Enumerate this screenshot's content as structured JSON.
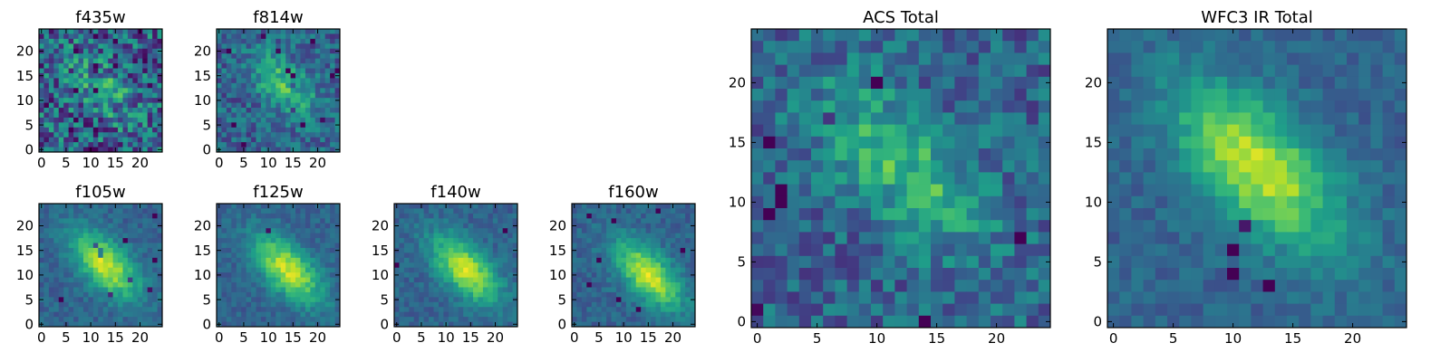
{
  "chart_data": [
    {
      "type": "heatmap",
      "title": "f435w",
      "xlabel": "",
      "ylabel": "",
      "grid": false,
      "colormap": "viridis",
      "grid_size": [
        25,
        25
      ],
      "xlim": [
        -0.5,
        24.5
      ],
      "ylim": [
        -0.5,
        24.5
      ],
      "xticks": [
        0,
        5,
        10,
        15,
        20
      ],
      "yticks": [
        0,
        5,
        10,
        15,
        20
      ],
      "peak_center": [
        12.5,
        12.5
      ],
      "peak_orientation": "diagonal upper-left to lower-right",
      "signal_level": "low",
      "noise_level": "high"
    },
    {
      "type": "heatmap",
      "title": "f814w",
      "xlabel": "",
      "ylabel": "",
      "grid": false,
      "colormap": "viridis",
      "grid_size": [
        25,
        25
      ],
      "xlim": [
        -0.5,
        24.5
      ],
      "ylim": [
        -0.5,
        24.5
      ],
      "xticks": [
        0,
        5,
        10,
        15,
        20
      ],
      "yticks": [
        0,
        5,
        10,
        15,
        20
      ],
      "peak_center": [
        13,
        13
      ],
      "peak_orientation": "diagonal upper-left to lower-right",
      "signal_level": "medium",
      "noise_level": "medium"
    },
    {
      "type": "heatmap",
      "title": "f105w",
      "xlabel": "",
      "ylabel": "",
      "grid": false,
      "colormap": "viridis",
      "grid_size": [
        25,
        25
      ],
      "xlim": [
        -0.5,
        24.5
      ],
      "ylim": [
        -0.5,
        24.5
      ],
      "xticks": [
        0,
        5,
        10,
        15,
        20
      ],
      "yticks": [
        0,
        5,
        10,
        15,
        20
      ],
      "peak_center": [
        13,
        12
      ],
      "peak_orientation": "diagonal upper-left to lower-right",
      "signal_level": "high",
      "noise_level": "low"
    },
    {
      "type": "heatmap",
      "title": "f125w",
      "xlabel": "",
      "ylabel": "",
      "grid": false,
      "colormap": "viridis",
      "grid_size": [
        25,
        25
      ],
      "xlim": [
        -0.5,
        24.5
      ],
      "ylim": [
        -0.5,
        24.5
      ],
      "xticks": [
        0,
        5,
        10,
        15,
        20
      ],
      "yticks": [
        0,
        5,
        10,
        15,
        20
      ],
      "peak_center": [
        14,
        11
      ],
      "peak_orientation": "diagonal upper-left to lower-right",
      "signal_level": "high",
      "noise_level": "low"
    },
    {
      "type": "heatmap",
      "title": "f140w",
      "xlabel": "",
      "ylabel": "",
      "grid": false,
      "colormap": "viridis",
      "grid_size": [
        25,
        25
      ],
      "xlim": [
        -0.5,
        24.5
      ],
      "ylim": [
        -0.5,
        24.5
      ],
      "xticks": [
        0,
        5,
        10,
        15,
        20
      ],
      "yticks": [
        0,
        5,
        10,
        15,
        20
      ],
      "peak_center": [
        14,
        11
      ],
      "peak_orientation": "diagonal upper-left to lower-right",
      "signal_level": "high",
      "noise_level": "low"
    },
    {
      "type": "heatmap",
      "title": "f160w",
      "xlabel": "",
      "ylabel": "",
      "grid": false,
      "colormap": "viridis",
      "grid_size": [
        25,
        25
      ],
      "xlim": [
        -0.5,
        24.5
      ],
      "ylim": [
        -0.5,
        24.5
      ],
      "xticks": [
        0,
        5,
        10,
        15,
        20
      ],
      "yticks": [
        0,
        5,
        10,
        15,
        20
      ],
      "peak_center": [
        15,
        10
      ],
      "peak_orientation": "diagonal upper-left to lower-right",
      "signal_level": "high",
      "noise_level": "low"
    },
    {
      "type": "heatmap",
      "title": "ACS Total",
      "xlabel": "",
      "ylabel": "",
      "grid": false,
      "colormap": "viridis",
      "grid_size": [
        25,
        25
      ],
      "xlim": [
        -0.5,
        24.5
      ],
      "ylim": [
        -0.5,
        24.5
      ],
      "xticks": [
        0,
        5,
        10,
        15,
        20
      ],
      "yticks": [
        0,
        5,
        10,
        15,
        20
      ],
      "peak_center": [
        12,
        13
      ],
      "peak_orientation": "diagonal upper-left to lower-right",
      "signal_level": "medium",
      "noise_level": "medium"
    },
    {
      "type": "heatmap",
      "title": "WFC3 IR Total",
      "xlabel": "",
      "ylabel": "",
      "grid": false,
      "colormap": "viridis",
      "grid_size": [
        25,
        25
      ],
      "xlim": [
        -0.5,
        24.5
      ],
      "ylim": [
        -0.5,
        24.5
      ],
      "xticks": [
        0,
        5,
        10,
        15,
        20
      ],
      "yticks": [
        0,
        5,
        10,
        15,
        20
      ],
      "peak_center": [
        12,
        13
      ],
      "peak_orientation": "diagonal upper-left to lower-right",
      "signal_level": "high",
      "noise_level": "low"
    }
  ]
}
